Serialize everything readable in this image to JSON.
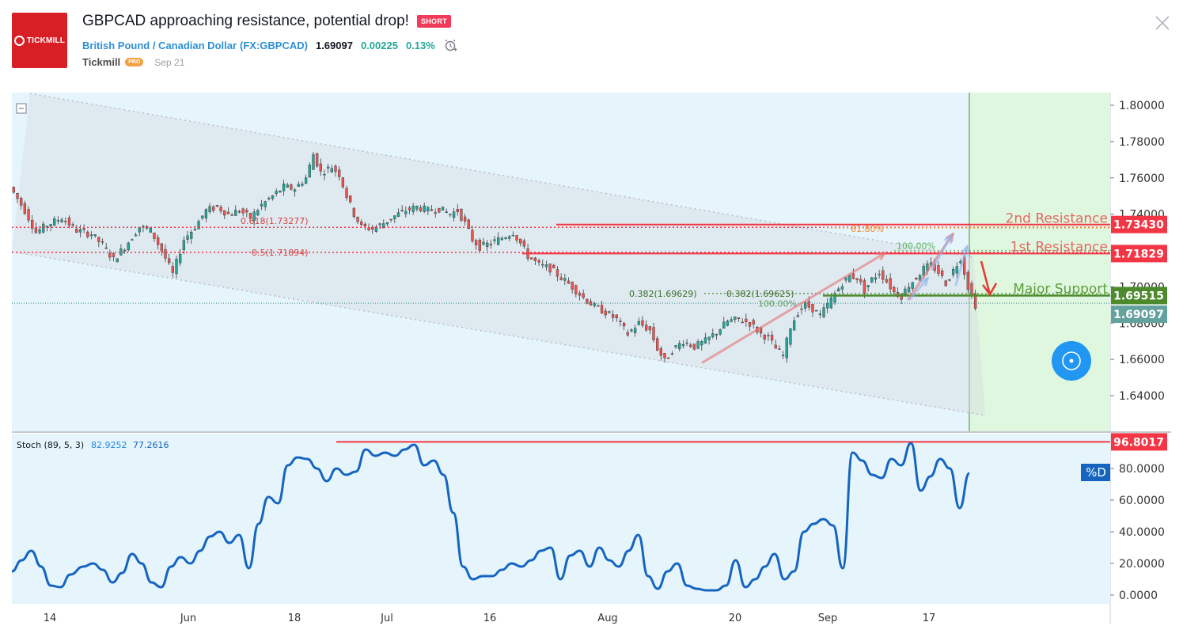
{
  "header": {
    "logo_text": "TICKMILL",
    "title": "GBPCAD approaching resistance, potential drop!",
    "badge": "SHORT",
    "symbol_name": "British Pound / Canadian Dollar",
    "symbol_code": "(FX:GBPCAD)",
    "price": "1.69097",
    "change": "0.00225",
    "change_pct": "0.13%",
    "author": "Tickmill",
    "author_badge": "PRO",
    "date": "Sep 21"
  },
  "colors": {
    "resistance": "#f23645",
    "support": "#4c8a2c",
    "stoch_line": "#1565c0",
    "fib_orange": "#f28a36",
    "up_candle": "#26a69a",
    "down_candle": "#ef5350",
    "projection_zone": "#dff7df",
    "pane_bg": "#e6f4fb"
  },
  "chart_data": [
    {
      "type": "candlestick",
      "symbol": "GBPCAD",
      "ylim": [
        1.62,
        1.81
      ],
      "yticks": [
        "1.80000",
        "1.78000",
        "1.76000",
        "1.74000",
        "1.72000",
        "1.70000",
        "1.68000",
        "1.66000",
        "1.64000"
      ],
      "xticks": [
        "14",
        "Jun",
        "18",
        "Jul",
        "16",
        "Aug",
        "20",
        "Sep",
        "17"
      ],
      "series_points": [
        [
          0,
          1.755
        ],
        [
          4,
          1.742
        ],
        [
          7,
          1.73
        ],
        [
          10,
          1.734
        ],
        [
          14,
          1.738
        ],
        [
          18,
          1.731
        ],
        [
          22,
          1.729
        ],
        [
          25,
          1.723
        ],
        [
          28,
          1.715
        ],
        [
          31,
          1.722
        ],
        [
          35,
          1.733
        ],
        [
          38,
          1.731
        ],
        [
          41,
          1.72
        ],
        [
          44,
          1.707
        ],
        [
          47,
          1.726
        ],
        [
          50,
          1.733
        ],
        [
          53,
          1.742
        ],
        [
          56,
          1.744
        ],
        [
          59,
          1.74
        ],
        [
          62,
          1.742
        ],
        [
          65,
          1.738
        ],
        [
          68,
          1.745
        ],
        [
          71,
          1.75
        ],
        [
          74,
          1.755
        ],
        [
          77,
          1.754
        ],
        [
          80,
          1.76
        ],
        [
          82,
          1.773
        ],
        [
          84,
          1.763
        ],
        [
          87,
          1.766
        ],
        [
          89,
          1.762
        ],
        [
          91,
          1.75
        ],
        [
          93,
          1.74
        ],
        [
          95,
          1.733
        ],
        [
          98,
          1.732
        ],
        [
          101,
          1.735
        ],
        [
          104,
          1.739
        ],
        [
          107,
          1.742
        ],
        [
          110,
          1.744
        ],
        [
          113,
          1.742
        ],
        [
          116,
          1.743
        ],
        [
          119,
          1.74
        ],
        [
          121,
          1.742
        ],
        [
          123,
          1.735
        ],
        [
          125,
          1.726
        ],
        [
          127,
          1.722
        ],
        [
          130,
          1.724
        ],
        [
          133,
          1.727
        ],
        [
          136,
          1.73
        ],
        [
          138,
          1.724
        ],
        [
          140,
          1.717
        ],
        [
          143,
          1.712
        ],
        [
          146,
          1.71
        ],
        [
          149,
          1.705
        ],
        [
          152,
          1.7
        ],
        [
          155,
          1.694
        ],
        [
          158,
          1.689
        ],
        [
          161,
          1.686
        ],
        [
          164,
          1.682
        ],
        [
          167,
          1.674
        ],
        [
          170,
          1.68
        ],
        [
          173,
          1.676
        ],
        [
          175,
          1.666
        ],
        [
          177,
          1.659
        ],
        [
          179,
          1.665
        ],
        [
          182,
          1.67
        ],
        [
          185,
          1.667
        ],
        [
          188,
          1.67
        ],
        [
          191,
          1.675
        ],
        [
          194,
          1.681
        ],
        [
          197,
          1.682
        ],
        [
          200,
          1.68
        ],
        [
          203,
          1.674
        ],
        [
          205,
          1.672
        ],
        [
          207,
          1.666
        ],
        [
          209,
          1.662
        ],
        [
          211,
          1.678
        ],
        [
          213,
          1.686
        ],
        [
          215,
          1.69
        ],
        [
          217,
          1.688
        ],
        [
          219,
          1.684
        ],
        [
          221,
          1.69
        ],
        [
          223,
          1.696
        ],
        [
          225,
          1.702
        ],
        [
          227,
          1.706
        ],
        [
          229,
          1.705
        ],
        [
          231,
          1.698
        ],
        [
          233,
          1.704
        ],
        [
          235,
          1.708
        ],
        [
          237,
          1.703
        ],
        [
          239,
          1.697
        ],
        [
          241,
          1.695
        ],
        [
          243,
          1.701
        ],
        [
          245,
          1.705
        ],
        [
          247,
          1.71
        ],
        [
          249,
          1.712
        ],
        [
          251,
          1.708
        ],
        [
          253,
          1.702
        ],
        [
          255,
          1.709
        ],
        [
          257,
          1.716
        ],
        [
          259,
          1.7
        ],
        [
          261,
          1.69
        ]
      ],
      "zones": {
        "second_resistance": {
          "label": "2nd Resistance",
          "value": 1.7343,
          "tag": "1.73430"
        },
        "first_resistance": {
          "label": "1st Resistance",
          "value": 1.71829,
          "tag": "1.71829"
        },
        "major_support": {
          "label": "Major Support",
          "value": 1.69515,
          "tag": "1.69515"
        },
        "last_price": {
          "value": 1.69097,
          "tag": "1.69097"
        }
      },
      "fib_labels": {
        "f618": "0.618(1.73277)",
        "f05": "0.5(1.71894)",
        "f382a": "0.382(1.69629)",
        "f382b": "0.382(1.69625)",
        "f6180": "61.80%",
        "f100a": "100.00%",
        "f100b": "100.00%"
      }
    },
    {
      "type": "line",
      "indicator": "Stoch (89, 5, 3)",
      "legend_values": [
        "82.9252",
        "77.2616"
      ],
      "ylim": [
        0,
        100
      ],
      "yticks": [
        "80.0000",
        "60.0000",
        "40.0000",
        "20.0000",
        "0.0000"
      ],
      "series_name": "%D",
      "level_tag": "96.8017",
      "level_value": 96.8017,
      "values": [
        [
          0,
          15
        ],
        [
          3,
          22
        ],
        [
          6,
          28
        ],
        [
          9,
          18
        ],
        [
          12,
          6
        ],
        [
          15,
          5
        ],
        [
          18,
          13
        ],
        [
          22,
          18
        ],
        [
          25,
          20
        ],
        [
          28,
          16
        ],
        [
          31,
          8
        ],
        [
          34,
          14
        ],
        [
          37,
          26
        ],
        [
          40,
          20
        ],
        [
          43,
          8
        ],
        [
          46,
          5
        ],
        [
          49,
          18
        ],
        [
          52,
          24
        ],
        [
          55,
          20
        ],
        [
          58,
          28
        ],
        [
          61,
          37
        ],
        [
          64,
          40
        ],
        [
          67,
          33
        ],
        [
          70,
          38
        ],
        [
          73,
          17
        ],
        [
          76,
          45
        ],
        [
          79,
          62
        ],
        [
          82,
          58
        ],
        [
          85,
          82
        ],
        [
          88,
          87
        ],
        [
          91,
          86
        ],
        [
          94,
          80
        ],
        [
          97,
          72
        ],
        [
          100,
          80
        ],
        [
          103,
          76
        ],
        [
          106,
          78
        ],
        [
          109,
          92
        ],
        [
          112,
          88
        ],
        [
          115,
          90
        ],
        [
          118,
          88
        ],
        [
          121,
          92
        ],
        [
          124,
          95
        ],
        [
          127,
          82
        ],
        [
          130,
          85
        ],
        [
          133,
          76
        ],
        [
          136,
          52
        ],
        [
          139,
          18
        ],
        [
          142,
          10
        ],
        [
          145,
          12
        ],
        [
          148,
          12
        ],
        [
          151,
          16
        ],
        [
          154,
          20
        ],
        [
          157,
          18
        ],
        [
          160,
          22
        ],
        [
          163,
          28
        ],
        [
          166,
          30
        ],
        [
          169,
          10
        ],
        [
          172,
          25
        ],
        [
          175,
          28
        ],
        [
          178,
          18
        ],
        [
          181,
          30
        ],
        [
          184,
          22
        ],
        [
          187,
          18
        ],
        [
          190,
          28
        ],
        [
          193,
          38
        ],
        [
          196,
          12
        ],
        [
          199,
          4
        ],
        [
          202,
          15
        ],
        [
          205,
          20
        ],
        [
          208,
          6
        ],
        [
          211,
          4
        ],
        [
          214,
          3
        ],
        [
          217,
          3
        ],
        [
          220,
          6
        ],
        [
          223,
          22
        ],
        [
          226,
          5
        ],
        [
          229,
          10
        ],
        [
          232,
          18
        ],
        [
          235,
          26
        ],
        [
          238,
          10
        ],
        [
          241,
          15
        ],
        [
          244,
          40
        ],
        [
          247,
          45
        ],
        [
          250,
          48
        ],
        [
          253,
          44
        ],
        [
          256,
          17
        ],
        [
          259,
          90
        ],
        [
          262,
          85
        ],
        [
          265,
          76
        ],
        [
          268,
          74
        ],
        [
          271,
          86
        ],
        [
          274,
          82
        ],
        [
          277,
          96
        ],
        [
          280,
          66
        ],
        [
          283,
          75
        ],
        [
          286,
          86
        ],
        [
          289,
          80
        ],
        [
          292,
          55
        ],
        [
          295,
          77
        ]
      ]
    }
  ]
}
